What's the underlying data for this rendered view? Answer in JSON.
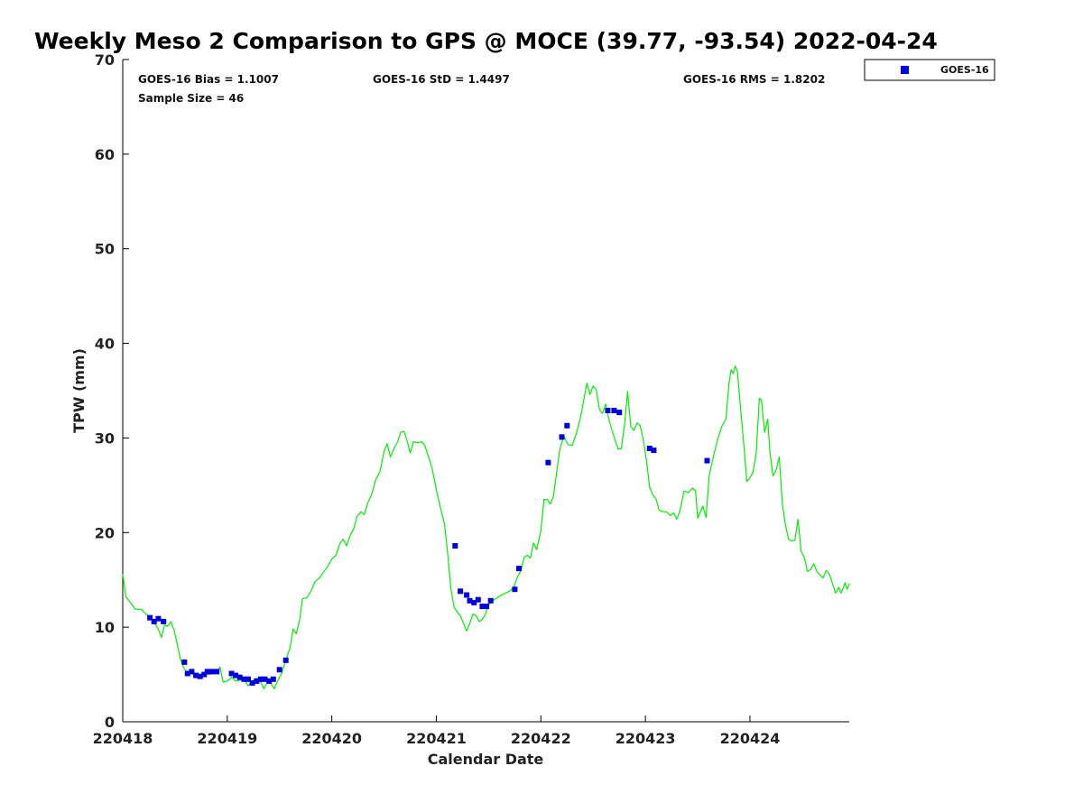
{
  "chart_data": {
    "type": "scatter",
    "title": "Weekly Meso 2 Comparison to GPS @ MOCE (39.77, -93.54) 2022-04-24",
    "xlabel": "Calendar Date",
    "ylabel": "TPW (mm)",
    "xlim": [
      0,
      6.95
    ],
    "ylim": [
      0,
      70
    ],
    "x_ticks": [
      {
        "value": 0,
        "label": "220418"
      },
      {
        "value": 1,
        "label": "220419"
      },
      {
        "value": 2,
        "label": "220420"
      },
      {
        "value": 3,
        "label": "220421"
      },
      {
        "value": 4,
        "label": "220422"
      },
      {
        "value": 5,
        "label": "220423"
      },
      {
        "value": 6,
        "label": "220424"
      }
    ],
    "y_ticks": [
      {
        "value": 0,
        "label": "0"
      },
      {
        "value": 10,
        "label": "10"
      },
      {
        "value": 20,
        "label": "20"
      },
      {
        "value": 30,
        "label": "30"
      },
      {
        "value": 40,
        "label": "40"
      },
      {
        "value": 50,
        "label": "50"
      },
      {
        "value": 60,
        "label": "60"
      },
      {
        "value": 70,
        "label": "70"
      }
    ],
    "stats": {
      "bias": "GOES-16 Bias = 1.1007",
      "std": "GOES-16 StD = 1.4497",
      "rms": "GOES-16 RMS = 1.8202",
      "sample": "Sample Size = 46"
    },
    "legend": {
      "position": "top-right",
      "label": "GOES-16"
    },
    "series": [
      {
        "name": "GPS",
        "kind": "line",
        "color": "#00ee00",
        "points": [
          [
            0.0,
            15.6
          ],
          [
            0.03,
            13.2
          ],
          [
            0.08,
            12.5
          ],
          [
            0.12,
            11.9
          ],
          [
            0.18,
            11.9
          ],
          [
            0.22,
            11.4
          ],
          [
            0.26,
            11.0
          ],
          [
            0.3,
            10.5
          ],
          [
            0.34,
            9.8
          ],
          [
            0.37,
            8.9
          ],
          [
            0.4,
            10.2
          ],
          [
            0.43,
            10.1
          ],
          [
            0.46,
            10.6
          ],
          [
            0.49,
            9.7
          ],
          [
            0.52,
            8.3
          ],
          [
            0.55,
            6.7
          ],
          [
            0.58,
            5.8
          ],
          [
            0.62,
            5.0
          ],
          [
            0.65,
            5.4
          ],
          [
            0.68,
            4.9
          ],
          [
            0.72,
            4.6
          ],
          [
            0.75,
            4.8
          ],
          [
            0.79,
            5.2
          ],
          [
            0.82,
            5.0
          ],
          [
            0.86,
            5.1
          ],
          [
            0.9,
            5.1
          ],
          [
            0.93,
            5.8
          ],
          [
            0.96,
            4.2
          ],
          [
            1.0,
            4.3
          ],
          [
            1.04,
            4.7
          ],
          [
            1.08,
            4.3
          ],
          [
            1.12,
            4.4
          ],
          [
            1.16,
            4.5
          ],
          [
            1.2,
            3.8
          ],
          [
            1.24,
            4.3
          ],
          [
            1.28,
            4.6
          ],
          [
            1.32,
            4.2
          ],
          [
            1.35,
            3.5
          ],
          [
            1.38,
            4.1
          ],
          [
            1.41,
            4.2
          ],
          [
            1.45,
            3.5
          ],
          [
            1.49,
            4.5
          ],
          [
            1.52,
            5.1
          ],
          [
            1.56,
            6.5
          ],
          [
            1.6,
            7.8
          ],
          [
            1.63,
            9.8
          ],
          [
            1.66,
            9.3
          ],
          [
            1.69,
            10.6
          ],
          [
            1.72,
            13.0
          ],
          [
            1.76,
            13.1
          ],
          [
            1.8,
            13.8
          ],
          [
            1.84,
            14.8
          ],
          [
            1.88,
            15.2
          ],
          [
            1.92,
            15.8
          ],
          [
            1.96,
            16.4
          ],
          [
            2.0,
            17.2
          ],
          [
            2.04,
            17.6
          ],
          [
            2.08,
            18.9
          ],
          [
            2.11,
            19.3
          ],
          [
            2.14,
            18.6
          ],
          [
            2.18,
            19.8
          ],
          [
            2.21,
            20.4
          ],
          [
            2.24,
            21.7
          ],
          [
            2.28,
            22.2
          ],
          [
            2.31,
            21.9
          ],
          [
            2.34,
            23.0
          ],
          [
            2.38,
            24.0
          ],
          [
            2.42,
            25.6
          ],
          [
            2.46,
            26.4
          ],
          [
            2.5,
            28.6
          ],
          [
            2.53,
            29.4
          ],
          [
            2.56,
            28.0
          ],
          [
            2.6,
            29.0
          ],
          [
            2.63,
            29.6
          ],
          [
            2.66,
            30.6
          ],
          [
            2.69,
            30.7
          ],
          [
            2.72,
            29.7
          ],
          [
            2.75,
            28.4
          ],
          [
            2.78,
            29.6
          ],
          [
            2.82,
            29.5
          ],
          [
            2.86,
            29.6
          ],
          [
            2.89,
            29.2
          ],
          [
            2.92,
            28.2
          ],
          [
            2.96,
            26.8
          ],
          [
            3.0,
            24.5
          ],
          [
            3.04,
            22.6
          ],
          [
            3.08,
            20.8
          ],
          [
            3.11,
            17.6
          ],
          [
            3.14,
            14.0
          ],
          [
            3.17,
            12.1
          ],
          [
            3.2,
            11.6
          ],
          [
            3.23,
            11.2
          ],
          [
            3.26,
            10.4
          ],
          [
            3.29,
            9.6
          ],
          [
            3.32,
            10.4
          ],
          [
            3.35,
            11.4
          ],
          [
            3.38,
            11.2
          ],
          [
            3.41,
            10.6
          ],
          [
            3.44,
            10.8
          ],
          [
            3.47,
            11.4
          ],
          [
            3.5,
            12.4
          ],
          [
            3.54,
            12.8
          ],
          [
            3.58,
            13.1
          ],
          [
            3.62,
            13.4
          ],
          [
            3.66,
            13.6
          ],
          [
            3.7,
            13.8
          ],
          [
            3.74,
            14.2
          ],
          [
            3.78,
            15.4
          ],
          [
            3.81,
            16.0
          ],
          [
            3.84,
            17.4
          ],
          [
            3.87,
            17.6
          ],
          [
            3.9,
            17.3
          ],
          [
            3.93,
            18.9
          ],
          [
            3.96,
            18.2
          ],
          [
            4.0,
            20.2
          ],
          [
            4.03,
            23.5
          ],
          [
            4.06,
            23.5
          ],
          [
            4.09,
            23.0
          ],
          [
            4.12,
            23.8
          ],
          [
            4.15,
            26.3
          ],
          [
            4.18,
            28.8
          ],
          [
            4.22,
            30.2
          ],
          [
            4.26,
            29.3
          ],
          [
            4.3,
            29.2
          ],
          [
            4.34,
            30.5
          ],
          [
            4.38,
            32.2
          ],
          [
            4.41,
            34.0
          ],
          [
            4.44,
            35.8
          ],
          [
            4.47,
            34.6
          ],
          [
            4.5,
            35.5
          ],
          [
            4.53,
            35.1
          ],
          [
            4.56,
            33.0
          ],
          [
            4.59,
            32.6
          ],
          [
            4.62,
            33.6
          ],
          [
            4.65,
            32.0
          ],
          [
            4.68,
            30.8
          ],
          [
            4.71,
            29.8
          ],
          [
            4.74,
            28.8
          ],
          [
            4.77,
            28.9
          ],
          [
            4.8,
            31.4
          ],
          [
            4.83,
            34.9
          ],
          [
            4.86,
            31.2
          ],
          [
            4.89,
            30.8
          ],
          [
            4.92,
            31.6
          ],
          [
            4.95,
            31.3
          ],
          [
            4.98,
            29.8
          ],
          [
            5.01,
            27.6
          ],
          [
            5.04,
            24.8
          ],
          [
            5.07,
            24.0
          ],
          [
            5.1,
            23.6
          ],
          [
            5.13,
            22.4
          ],
          [
            5.16,
            22.2
          ],
          [
            5.2,
            22.2
          ],
          [
            5.24,
            21.8
          ],
          [
            5.27,
            22.1
          ],
          [
            5.3,
            21.4
          ],
          [
            5.33,
            22.3
          ],
          [
            5.37,
            24.4
          ],
          [
            5.41,
            24.2
          ],
          [
            5.45,
            24.7
          ],
          [
            5.48,
            24.4
          ],
          [
            5.5,
            21.5
          ],
          [
            5.53,
            22.3
          ],
          [
            5.55,
            22.8
          ],
          [
            5.58,
            21.6
          ],
          [
            5.61,
            26.0
          ],
          [
            5.65,
            28.0
          ],
          [
            5.69,
            29.8
          ],
          [
            5.73,
            31.2
          ],
          [
            5.77,
            32.0
          ],
          [
            5.8,
            35.8
          ],
          [
            5.82,
            37.2
          ],
          [
            5.84,
            36.8
          ],
          [
            5.86,
            37.6
          ],
          [
            5.88,
            37.0
          ],
          [
            5.91,
            33.2
          ],
          [
            5.94,
            29.5
          ],
          [
            5.97,
            25.4
          ],
          [
            6.0,
            25.8
          ],
          [
            6.03,
            26.4
          ],
          [
            6.06,
            28.4
          ],
          [
            6.09,
            34.2
          ],
          [
            6.11,
            34.0
          ],
          [
            6.14,
            30.6
          ],
          [
            6.17,
            32.0
          ],
          [
            6.19,
            28.6
          ],
          [
            6.22,
            26.0
          ],
          [
            6.25,
            26.6
          ],
          [
            6.28,
            28.0
          ],
          [
            6.31,
            23.0
          ],
          [
            6.34,
            20.8
          ],
          [
            6.37,
            19.3
          ],
          [
            6.4,
            19.1
          ],
          [
            6.43,
            19.2
          ],
          [
            6.46,
            21.4
          ],
          [
            6.49,
            18.0
          ],
          [
            6.52,
            17.4
          ],
          [
            6.55,
            15.9
          ],
          [
            6.58,
            16.1
          ],
          [
            6.61,
            16.7
          ],
          [
            6.64,
            15.9
          ],
          [
            6.67,
            15.5
          ],
          [
            6.7,
            15.2
          ],
          [
            6.73,
            16.0
          ],
          [
            6.76,
            15.6
          ],
          [
            6.79,
            14.6
          ],
          [
            6.82,
            13.6
          ],
          [
            6.85,
            14.2
          ],
          [
            6.87,
            13.6
          ],
          [
            6.89,
            14.1
          ],
          [
            6.91,
            14.7
          ],
          [
            6.93,
            14.0
          ],
          [
            6.95,
            14.6
          ]
        ]
      },
      {
        "name": "GOES-16",
        "kind": "scatter",
        "color": "#0000dd",
        "points": [
          [
            0.26,
            11.0
          ],
          [
            0.3,
            10.6
          ],
          [
            0.34,
            10.9
          ],
          [
            0.39,
            10.6
          ],
          [
            0.59,
            6.3
          ],
          [
            0.62,
            5.1
          ],
          [
            0.66,
            5.3
          ],
          [
            0.7,
            4.9
          ],
          [
            0.74,
            4.8
          ],
          [
            0.78,
            5.0
          ],
          [
            0.81,
            5.3
          ],
          [
            0.85,
            5.3
          ],
          [
            0.9,
            5.3
          ],
          [
            1.04,
            5.1
          ],
          [
            1.08,
            4.9
          ],
          [
            1.12,
            4.7
          ],
          [
            1.16,
            4.5
          ],
          [
            1.2,
            4.5
          ],
          [
            1.24,
            4.1
          ],
          [
            1.28,
            4.3
          ],
          [
            1.32,
            4.5
          ],
          [
            1.36,
            4.5
          ],
          [
            1.4,
            4.3
          ],
          [
            1.44,
            4.5
          ],
          [
            1.5,
            5.5
          ],
          [
            1.56,
            6.5
          ],
          [
            3.18,
            18.6
          ],
          [
            3.23,
            13.8
          ],
          [
            3.29,
            13.4
          ],
          [
            3.32,
            12.8
          ],
          [
            3.36,
            12.6
          ],
          [
            3.4,
            12.9
          ],
          [
            3.44,
            12.2
          ],
          [
            3.48,
            12.2
          ],
          [
            3.52,
            12.8
          ],
          [
            3.75,
            14.0
          ],
          [
            3.79,
            16.2
          ],
          [
            4.07,
            27.4
          ],
          [
            4.2,
            30.1
          ],
          [
            4.25,
            31.3
          ],
          [
            4.64,
            32.9
          ],
          [
            4.7,
            32.9
          ],
          [
            4.75,
            32.7
          ],
          [
            5.04,
            28.9
          ],
          [
            5.08,
            28.7
          ],
          [
            5.59,
            27.6
          ]
        ]
      }
    ]
  }
}
